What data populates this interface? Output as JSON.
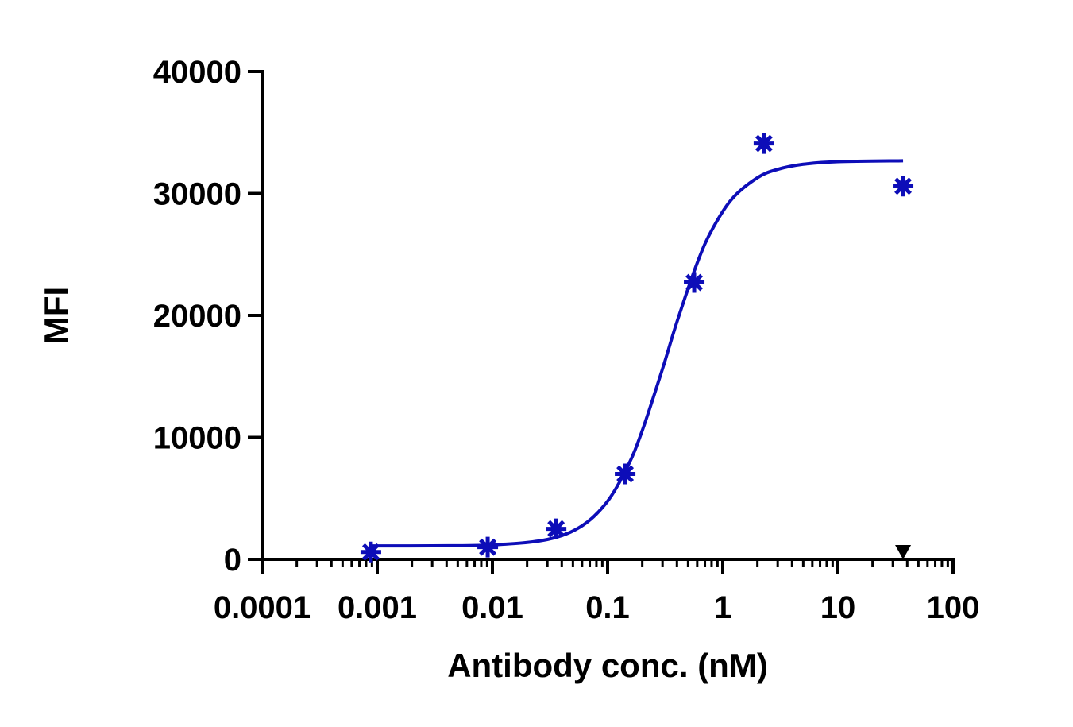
{
  "chart_data": {
    "type": "scatter",
    "x_label": "Antibody conc. (nM)",
    "y_label": "MFI",
    "xscale": "log",
    "xlim": [
      0.0001,
      100
    ],
    "xticks": [
      0.0001,
      0.001,
      0.01,
      0.1,
      1,
      10,
      100
    ],
    "ylim": [
      0,
      40000
    ],
    "yticks": [
      0,
      10000,
      20000,
      30000,
      40000
    ],
    "grid": false,
    "series": [
      {
        "type": "line",
        "color": "#0d0db8",
        "x": [
          0.00088,
          0.003,
          0.01,
          0.03,
          0.06,
          0.1,
          0.15,
          0.2,
          0.3,
          0.4,
          0.6,
          0.8,
          1.2,
          2,
          3,
          5,
          10,
          36.8
        ],
        "values": [
          1100,
          1111,
          1183,
          1628,
          2751,
          4770,
          7656,
          10555,
          15622,
          19462,
          24301,
          26960,
          29543,
          31290,
          31974,
          32392,
          32604,
          32680
        ]
      },
      {
        "type": "scatter",
        "marker": "asterisk",
        "color": "#0d0db8",
        "x": [
          0.00088,
          0.0091,
          0.0357,
          0.142,
          0.565,
          2.28,
          36.8
        ],
        "values": [
          600,
          1000,
          2500,
          7000,
          22700,
          34100,
          30600
        ]
      },
      {
        "type": "scatter",
        "marker": "triangle-down",
        "color": "#000000",
        "x": [
          36.8
        ],
        "values": [
          650
        ]
      }
    ]
  }
}
